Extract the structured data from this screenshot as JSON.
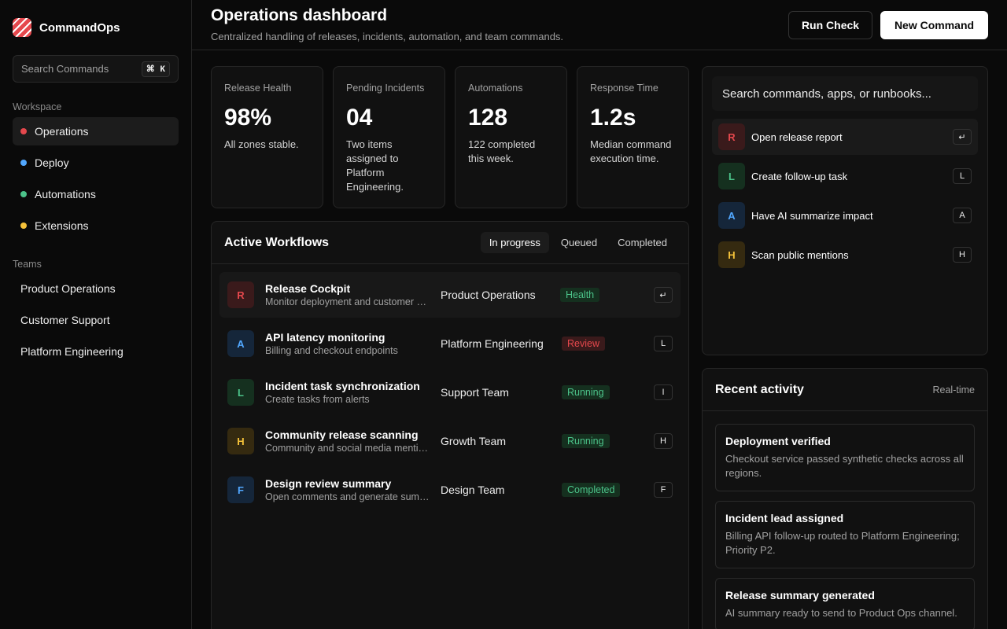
{
  "sidebar": {
    "brand": "CommandOps",
    "search_placeholder": "Search Commands",
    "search_shortcut": "⌘ K",
    "workspace_label": "Workspace",
    "workspace_items": [
      {
        "label": "Operations",
        "color": "#e5484d"
      },
      {
        "label": "Deploy",
        "color": "#52a8ff"
      },
      {
        "label": "Automations",
        "color": "#4cc38a"
      },
      {
        "label": "Extensions",
        "color": "#f5c23a"
      }
    ],
    "teams_label": "Teams",
    "teams": [
      "Product Operations",
      "Customer Support",
      "Platform Engineering"
    ]
  },
  "header": {
    "title": "Operations dashboard",
    "subtitle": "Centralized handling of releases, incidents, automation, and team commands.",
    "run_check": "Run Check",
    "new_command": "New Command"
  },
  "stats": [
    {
      "label": "Release Health",
      "value": "98%",
      "desc": "All zones stable."
    },
    {
      "label": "Pending Incidents",
      "value": "04",
      "desc": "Two items assigned to Platform Engineering."
    },
    {
      "label": "Automations",
      "value": "128",
      "desc": "122 completed this week."
    },
    {
      "label": "Response Time",
      "value": "1.2s",
      "desc": "Median command execution time."
    }
  ],
  "workflows": {
    "title": "Active Workflows",
    "tabs": [
      "In progress",
      "Queued",
      "Completed"
    ],
    "rows": [
      {
        "letter": "R",
        "name": "Release Cockpit",
        "desc": "Monitor deployment and customer health",
        "team": "Product Operations",
        "status": "Health",
        "key": "↵"
      },
      {
        "letter": "A",
        "name": "API latency monitoring",
        "desc": "Billing and checkout endpoints",
        "team": "Platform Engineering",
        "status": "Review",
        "key": "L"
      },
      {
        "letter": "L",
        "name": "Incident task synchronization",
        "desc": "Create tasks from alerts",
        "team": "Support Team",
        "status": "Running",
        "key": "I"
      },
      {
        "letter": "H",
        "name": "Community release scanning",
        "desc": "Community and social media mentions",
        "team": "Growth Team",
        "status": "Running",
        "key": "H"
      },
      {
        "letter": "F",
        "name": "Design review summary",
        "desc": "Open comments and generate summary",
        "team": "Design Team",
        "status": "Completed",
        "key": "F"
      }
    ]
  },
  "palette": {
    "placeholder": "Search commands, apps, or runbooks...",
    "items": [
      {
        "letter": "R",
        "label": "Open release report",
        "key": "↵"
      },
      {
        "letter": "L",
        "label": "Create follow-up task",
        "key": "L"
      },
      {
        "letter": "A",
        "label": "Have AI summarize impact",
        "key": "A"
      },
      {
        "letter": "H",
        "label": "Scan public mentions",
        "key": "H"
      }
    ]
  },
  "activity": {
    "title": "Recent activity",
    "meta": "Real-time",
    "items": [
      {
        "name": "Deployment verified",
        "desc": "Checkout service passed synthetic checks across all regions."
      },
      {
        "name": "Incident lead assigned",
        "desc": "Billing API follow-up routed to Platform Engineering; Priority P2."
      },
      {
        "name": "Release summary generated",
        "desc": "AI summary ready to send to Product Ops channel."
      }
    ]
  },
  "colors": {
    "red": "#e5484d",
    "blue": "#52a8ff",
    "green": "#4cc38a",
    "yellow": "#f5c23a"
  }
}
